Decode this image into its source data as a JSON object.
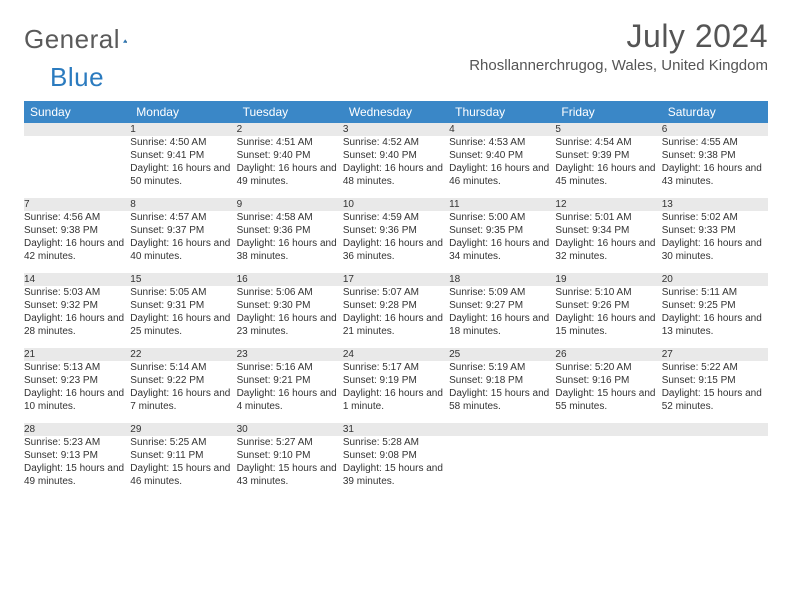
{
  "brand": {
    "name1": "General",
    "name2": "Blue"
  },
  "title": "July 2024",
  "location": "Rhosllannerchrugog, Wales, United Kingdom",
  "colors": {
    "header_bg": "#3a87c7",
    "header_text": "#ffffff",
    "daynum_bg": "#e9e9e9",
    "daynum_border": "#3a87c7",
    "body_text": "#333333",
    "title_text": "#555555",
    "logo_gray": "#5a5a5a",
    "logo_blue": "#2b7bbf"
  },
  "typography": {
    "title_fontsize": 32,
    "location_fontsize": 15,
    "weekday_fontsize": 12,
    "daynum_fontsize": 12,
    "cell_fontsize": 10
  },
  "weekdays": [
    "Sunday",
    "Monday",
    "Tuesday",
    "Wednesday",
    "Thursday",
    "Friday",
    "Saturday"
  ],
  "weeks": [
    [
      null,
      {
        "n": "1",
        "sunrise": "Sunrise: 4:50 AM",
        "sunset": "Sunset: 9:41 PM",
        "daylight": "Daylight: 16 hours and 50 minutes."
      },
      {
        "n": "2",
        "sunrise": "Sunrise: 4:51 AM",
        "sunset": "Sunset: 9:40 PM",
        "daylight": "Daylight: 16 hours and 49 minutes."
      },
      {
        "n": "3",
        "sunrise": "Sunrise: 4:52 AM",
        "sunset": "Sunset: 9:40 PM",
        "daylight": "Daylight: 16 hours and 48 minutes."
      },
      {
        "n": "4",
        "sunrise": "Sunrise: 4:53 AM",
        "sunset": "Sunset: 9:40 PM",
        "daylight": "Daylight: 16 hours and 46 minutes."
      },
      {
        "n": "5",
        "sunrise": "Sunrise: 4:54 AM",
        "sunset": "Sunset: 9:39 PM",
        "daylight": "Daylight: 16 hours and 45 minutes."
      },
      {
        "n": "6",
        "sunrise": "Sunrise: 4:55 AM",
        "sunset": "Sunset: 9:38 PM",
        "daylight": "Daylight: 16 hours and 43 minutes."
      }
    ],
    [
      {
        "n": "7",
        "sunrise": "Sunrise: 4:56 AM",
        "sunset": "Sunset: 9:38 PM",
        "daylight": "Daylight: 16 hours and 42 minutes."
      },
      {
        "n": "8",
        "sunrise": "Sunrise: 4:57 AM",
        "sunset": "Sunset: 9:37 PM",
        "daylight": "Daylight: 16 hours and 40 minutes."
      },
      {
        "n": "9",
        "sunrise": "Sunrise: 4:58 AM",
        "sunset": "Sunset: 9:36 PM",
        "daylight": "Daylight: 16 hours and 38 minutes."
      },
      {
        "n": "10",
        "sunrise": "Sunrise: 4:59 AM",
        "sunset": "Sunset: 9:36 PM",
        "daylight": "Daylight: 16 hours and 36 minutes."
      },
      {
        "n": "11",
        "sunrise": "Sunrise: 5:00 AM",
        "sunset": "Sunset: 9:35 PM",
        "daylight": "Daylight: 16 hours and 34 minutes."
      },
      {
        "n": "12",
        "sunrise": "Sunrise: 5:01 AM",
        "sunset": "Sunset: 9:34 PM",
        "daylight": "Daylight: 16 hours and 32 minutes."
      },
      {
        "n": "13",
        "sunrise": "Sunrise: 5:02 AM",
        "sunset": "Sunset: 9:33 PM",
        "daylight": "Daylight: 16 hours and 30 minutes."
      }
    ],
    [
      {
        "n": "14",
        "sunrise": "Sunrise: 5:03 AM",
        "sunset": "Sunset: 9:32 PM",
        "daylight": "Daylight: 16 hours and 28 minutes."
      },
      {
        "n": "15",
        "sunrise": "Sunrise: 5:05 AM",
        "sunset": "Sunset: 9:31 PM",
        "daylight": "Daylight: 16 hours and 25 minutes."
      },
      {
        "n": "16",
        "sunrise": "Sunrise: 5:06 AM",
        "sunset": "Sunset: 9:30 PM",
        "daylight": "Daylight: 16 hours and 23 minutes."
      },
      {
        "n": "17",
        "sunrise": "Sunrise: 5:07 AM",
        "sunset": "Sunset: 9:28 PM",
        "daylight": "Daylight: 16 hours and 21 minutes."
      },
      {
        "n": "18",
        "sunrise": "Sunrise: 5:09 AM",
        "sunset": "Sunset: 9:27 PM",
        "daylight": "Daylight: 16 hours and 18 minutes."
      },
      {
        "n": "19",
        "sunrise": "Sunrise: 5:10 AM",
        "sunset": "Sunset: 9:26 PM",
        "daylight": "Daylight: 16 hours and 15 minutes."
      },
      {
        "n": "20",
        "sunrise": "Sunrise: 5:11 AM",
        "sunset": "Sunset: 9:25 PM",
        "daylight": "Daylight: 16 hours and 13 minutes."
      }
    ],
    [
      {
        "n": "21",
        "sunrise": "Sunrise: 5:13 AM",
        "sunset": "Sunset: 9:23 PM",
        "daylight": "Daylight: 16 hours and 10 minutes."
      },
      {
        "n": "22",
        "sunrise": "Sunrise: 5:14 AM",
        "sunset": "Sunset: 9:22 PM",
        "daylight": "Daylight: 16 hours and 7 minutes."
      },
      {
        "n": "23",
        "sunrise": "Sunrise: 5:16 AM",
        "sunset": "Sunset: 9:21 PM",
        "daylight": "Daylight: 16 hours and 4 minutes."
      },
      {
        "n": "24",
        "sunrise": "Sunrise: 5:17 AM",
        "sunset": "Sunset: 9:19 PM",
        "daylight": "Daylight: 16 hours and 1 minute."
      },
      {
        "n": "25",
        "sunrise": "Sunrise: 5:19 AM",
        "sunset": "Sunset: 9:18 PM",
        "daylight": "Daylight: 15 hours and 58 minutes."
      },
      {
        "n": "26",
        "sunrise": "Sunrise: 5:20 AM",
        "sunset": "Sunset: 9:16 PM",
        "daylight": "Daylight: 15 hours and 55 minutes."
      },
      {
        "n": "27",
        "sunrise": "Sunrise: 5:22 AM",
        "sunset": "Sunset: 9:15 PM",
        "daylight": "Daylight: 15 hours and 52 minutes."
      }
    ],
    [
      {
        "n": "28",
        "sunrise": "Sunrise: 5:23 AM",
        "sunset": "Sunset: 9:13 PM",
        "daylight": "Daylight: 15 hours and 49 minutes."
      },
      {
        "n": "29",
        "sunrise": "Sunrise: 5:25 AM",
        "sunset": "Sunset: 9:11 PM",
        "daylight": "Daylight: 15 hours and 46 minutes."
      },
      {
        "n": "30",
        "sunrise": "Sunrise: 5:27 AM",
        "sunset": "Sunset: 9:10 PM",
        "daylight": "Daylight: 15 hours and 43 minutes."
      },
      {
        "n": "31",
        "sunrise": "Sunrise: 5:28 AM",
        "sunset": "Sunset: 9:08 PM",
        "daylight": "Daylight: 15 hours and 39 minutes."
      },
      null,
      null,
      null
    ]
  ]
}
